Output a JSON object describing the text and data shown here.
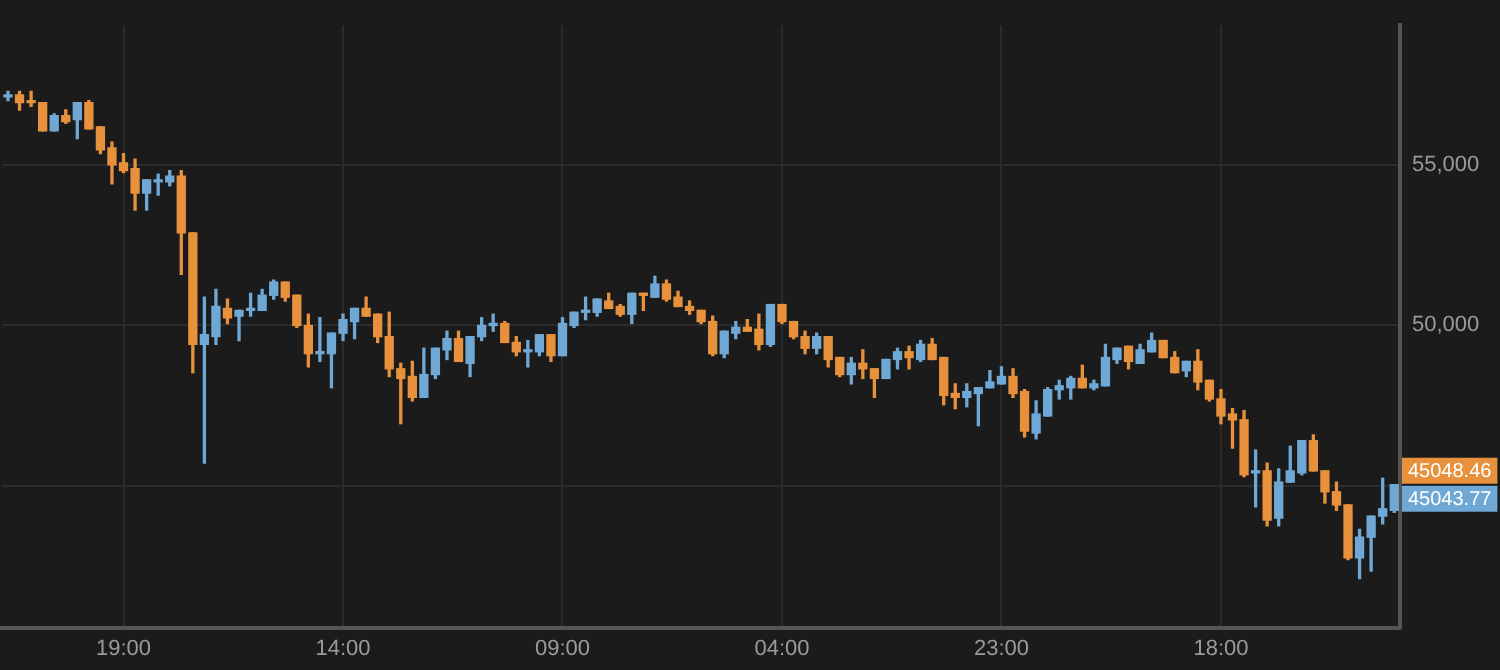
{
  "chart_data": {
    "type": "candlestick",
    "categories": [
      null,
      null,
      null,
      null,
      null,
      null,
      null,
      null,
      null,
      null,
      "19:00",
      null,
      null,
      null,
      null,
      null,
      null,
      null,
      null,
      null,
      null,
      null,
      null,
      null,
      null,
      null,
      null,
      null,
      null,
      "14:00",
      null,
      null,
      null,
      null,
      null,
      null,
      null,
      null,
      null,
      null,
      null,
      null,
      null,
      null,
      null,
      null,
      null,
      null,
      "09:00",
      null,
      null,
      null,
      null,
      null,
      null,
      null,
      null,
      null,
      null,
      null,
      null,
      null,
      null,
      null,
      null,
      null,
      null,
      "04:00",
      null,
      null,
      null,
      null,
      null,
      null,
      null,
      null,
      null,
      null,
      null,
      null,
      null,
      null,
      null,
      null,
      null,
      null,
      "23:00",
      null,
      null,
      null,
      null,
      null,
      null,
      null,
      null,
      null,
      null,
      null,
      null,
      null,
      null,
      null,
      null,
      null,
      null,
      "18:00",
      null,
      null,
      null,
      null,
      null,
      null,
      null,
      null,
      null,
      null,
      null,
      null,
      null,
      null,
      null
    ],
    "ohlc": [
      [
        57120,
        57290,
        57000,
        57180
      ],
      [
        57180,
        57290,
        56710,
        56940
      ],
      [
        57000,
        57290,
        56820,
        56940
      ],
      [
        56940,
        56940,
        56060,
        56060
      ],
      [
        56060,
        56590,
        56060,
        56530
      ],
      [
        56530,
        56710,
        56290,
        56350
      ],
      [
        56410,
        56940,
        55820,
        56940
      ],
      [
        56940,
        57000,
        56120,
        56120
      ],
      [
        56180,
        56180,
        55350,
        55470
      ],
      [
        55530,
        55710,
        54410,
        55000
      ],
      [
        55060,
        55350,
        54760,
        54820
      ],
      [
        54880,
        55180,
        53590,
        54120
      ],
      [
        54120,
        54530,
        53590,
        54530
      ],
      [
        54470,
        54710,
        54060,
        54530
      ],
      [
        54470,
        54820,
        54350,
        54650
      ],
      [
        54650,
        54820,
        51590,
        52880
      ],
      [
        52880,
        52880,
        48530,
        49410
      ],
      [
        49410,
        50880,
        45710,
        49710
      ],
      [
        49650,
        51120,
        49410,
        50590
      ],
      [
        50530,
        50820,
        50060,
        50240
      ],
      [
        50290,
        50470,
        49530,
        50470
      ],
      [
        50470,
        51000,
        50290,
        50530
      ],
      [
        50470,
        51120,
        50470,
        50940
      ],
      [
        50940,
        51410,
        50820,
        51350
      ],
      [
        51350,
        51350,
        50760,
        50880
      ],
      [
        50940,
        50940,
        49940,
        50000
      ],
      [
        50000,
        50350,
        48710,
        49120
      ],
      [
        49120,
        50240,
        48880,
        49180
      ],
      [
        49120,
        49760,
        48060,
        49760
      ],
      [
        49760,
        50350,
        49530,
        50180
      ],
      [
        50120,
        50530,
        49590,
        50530
      ],
      [
        50530,
        50880,
        50290,
        50290
      ],
      [
        50350,
        50350,
        49470,
        49650
      ],
      [
        49650,
        50410,
        48410,
        48650
      ],
      [
        48650,
        48820,
        46940,
        48350
      ],
      [
        48410,
        48880,
        47650,
        47760
      ],
      [
        47760,
        49290,
        47760,
        48470
      ],
      [
        48470,
        49290,
        48350,
        49290
      ],
      [
        49240,
        49820,
        48940,
        49590
      ],
      [
        49590,
        49820,
        48880,
        48880
      ],
      [
        48820,
        49650,
        48410,
        49650
      ],
      [
        49650,
        50240,
        49530,
        50000
      ],
      [
        50000,
        50350,
        49820,
        50060
      ],
      [
        50060,
        50120,
        49470,
        49470
      ],
      [
        49470,
        49650,
        49060,
        49180
      ],
      [
        49180,
        49530,
        48710,
        49240
      ],
      [
        49180,
        49710,
        49060,
        49710
      ],
      [
        49710,
        49710,
        48880,
        49060
      ],
      [
        49060,
        50240,
        49060,
        50060
      ],
      [
        50000,
        50410,
        49940,
        50410
      ],
      [
        50410,
        50880,
        50180,
        50470
      ],
      [
        50410,
        50820,
        50290,
        50820
      ],
      [
        50760,
        51000,
        50530,
        50530
      ],
      [
        50590,
        50650,
        50290,
        50350
      ],
      [
        50350,
        51000,
        50060,
        51000
      ],
      [
        51000,
        51000,
        50470,
        50940
      ],
      [
        50880,
        51530,
        50880,
        51290
      ],
      [
        51290,
        51410,
        50760,
        50820
      ],
      [
        50880,
        51060,
        50590,
        50590
      ],
      [
        50590,
        50760,
        50350,
        50470
      ],
      [
        50470,
        50470,
        50060,
        50120
      ],
      [
        50120,
        50290,
        49060,
        49120
      ],
      [
        49120,
        49820,
        49000,
        49820
      ],
      [
        49760,
        50120,
        49590,
        49940
      ],
      [
        49940,
        50180,
        49820,
        49820
      ],
      [
        49880,
        50350,
        49240,
        49410
      ],
      [
        49410,
        50650,
        49350,
        50650
      ],
      [
        50650,
        50650,
        50060,
        50120
      ],
      [
        50120,
        50120,
        49590,
        49650
      ],
      [
        49650,
        49820,
        49120,
        49290
      ],
      [
        49290,
        49760,
        49120,
        49650
      ],
      [
        49650,
        49650,
        48710,
        48940
      ],
      [
        49000,
        49000,
        48410,
        48470
      ],
      [
        48470,
        49000,
        48180,
        48820
      ],
      [
        48820,
        49240,
        48350,
        48650
      ],
      [
        48650,
        48650,
        47760,
        48350
      ],
      [
        48350,
        48940,
        48350,
        48940
      ],
      [
        48940,
        49290,
        48650,
        49180
      ],
      [
        49180,
        49350,
        48650,
        49000
      ],
      [
        48940,
        49530,
        48880,
        49410
      ],
      [
        49410,
        49590,
        48940,
        48940
      ],
      [
        49000,
        49000,
        47530,
        47820
      ],
      [
        47880,
        48180,
        47410,
        47760
      ],
      [
        47760,
        48180,
        47470,
        47940
      ],
      [
        47880,
        48060,
        46880,
        48060
      ],
      [
        48060,
        48590,
        48060,
        48240
      ],
      [
        48180,
        48710,
        48180,
        48410
      ],
      [
        48410,
        48650,
        47760,
        47880
      ],
      [
        47940,
        48000,
        46530,
        46710
      ],
      [
        46650,
        47650,
        46470,
        47240
      ],
      [
        47180,
        48060,
        47180,
        48000
      ],
      [
        48000,
        48290,
        47710,
        48120
      ],
      [
        48060,
        48410,
        47710,
        48350
      ],
      [
        48350,
        48760,
        48060,
        48060
      ],
      [
        48060,
        48290,
        48000,
        48180
      ],
      [
        48120,
        49410,
        48120,
        49000
      ],
      [
        48940,
        49290,
        48820,
        49290
      ],
      [
        49350,
        49350,
        48650,
        48880
      ],
      [
        48820,
        49410,
        48820,
        49240
      ],
      [
        49180,
        49760,
        49180,
        49530
      ],
      [
        49530,
        49530,
        49000,
        49000
      ],
      [
        49000,
        49180,
        48530,
        48530
      ],
      [
        48590,
        48880,
        48410,
        48880
      ],
      [
        48880,
        49240,
        48000,
        48240
      ],
      [
        48290,
        48290,
        47650,
        47710
      ],
      [
        47710,
        48000,
        46940,
        47180
      ],
      [
        47240,
        47410,
        46180,
        47060
      ],
      [
        47060,
        47350,
        45290,
        45350
      ],
      [
        45410,
        46120,
        44350,
        45470
      ],
      [
        45470,
        45710,
        43760,
        43940
      ],
      [
        44000,
        45530,
        43760,
        45120
      ],
      [
        45120,
        46240,
        45120,
        45470
      ],
      [
        45410,
        46410,
        45350,
        46410
      ],
      [
        46410,
        46590,
        45470,
        45470
      ],
      [
        45470,
        45470,
        44470,
        44820
      ],
      [
        44820,
        45120,
        44240,
        44410
      ],
      [
        44410,
        44410,
        42710,
        42760
      ],
      [
        42760,
        43650,
        42120,
        43410
      ],
      [
        43410,
        44060,
        42350,
        44060
      ],
      [
        44060,
        45240,
        43820,
        44290
      ],
      [
        44240,
        45040,
        44180,
        45040
      ]
    ],
    "colors": [
      "#6fa8d4",
      "#e8913c",
      "#e8913c",
      "#e8913c",
      "#6fa8d4",
      "#e8913c",
      "#6fa8d4",
      "#e8913c",
      "#e8913c",
      "#e8913c",
      "#e8913c",
      "#e8913c",
      "#6fa8d4",
      "#6fa8d4",
      "#6fa8d4",
      "#e8913c",
      "#e8913c",
      "#6fa8d4",
      "#6fa8d4",
      "#e8913c",
      "#6fa8d4",
      "#6fa8d4",
      "#6fa8d4",
      "#6fa8d4",
      "#e8913c",
      "#e8913c",
      "#e8913c",
      "#6fa8d4",
      "#6fa8d4",
      "#6fa8d4",
      "#6fa8d4",
      "#e8913c",
      "#e8913c",
      "#e8913c",
      "#e8913c",
      "#e8913c",
      "#6fa8d4",
      "#6fa8d4",
      "#6fa8d4",
      "#e8913c",
      "#6fa8d4",
      "#6fa8d4",
      "#6fa8d4",
      "#e8913c",
      "#e8913c",
      "#6fa8d4",
      "#6fa8d4",
      "#e8913c",
      "#6fa8d4",
      "#6fa8d4",
      "#6fa8d4",
      "#6fa8d4",
      "#e8913c",
      "#e8913c",
      "#6fa8d4",
      "#e8913c",
      "#6fa8d4",
      "#e8913c",
      "#e8913c",
      "#e8913c",
      "#e8913c",
      "#e8913c",
      "#6fa8d4",
      "#6fa8d4",
      "#e8913c",
      "#e8913c",
      "#6fa8d4",
      "#e8913c",
      "#e8913c",
      "#e8913c",
      "#6fa8d4",
      "#e8913c",
      "#e8913c",
      "#6fa8d4",
      "#e8913c",
      "#e8913c",
      "#6fa8d4",
      "#6fa8d4",
      "#e8913c",
      "#6fa8d4",
      "#e8913c",
      "#e8913c",
      "#e8913c",
      "#6fa8d4",
      "#6fa8d4",
      "#6fa8d4",
      "#6fa8d4",
      "#e8913c",
      "#e8913c",
      "#6fa8d4",
      "#6fa8d4",
      "#6fa8d4",
      "#6fa8d4",
      "#e8913c",
      "#6fa8d4",
      "#6fa8d4",
      "#6fa8d4",
      "#e8913c",
      "#6fa8d4",
      "#6fa8d4",
      "#e8913c",
      "#e8913c",
      "#6fa8d4",
      "#e8913c",
      "#e8913c",
      "#e8913c",
      "#e8913c",
      "#e8913c",
      "#6fa8d4",
      "#e8913c",
      "#6fa8d4",
      "#6fa8d4",
      "#6fa8d4",
      "#e8913c",
      "#e8913c",
      "#e8913c",
      "#e8913c",
      "#6fa8d4",
      "#6fa8d4",
      "#6fa8d4",
      "#6fa8d4"
    ],
    "ylim": [
      40590,
      59350
    ],
    "yticks": [
      {
        "value": 45000,
        "label": null
      },
      {
        "value": 50000,
        "label": "50,000"
      },
      {
        "value": 55000,
        "label": "55,000"
      }
    ],
    "grid": true,
    "annotations": [
      "45048.46",
      "45043.77"
    ]
  }
}
